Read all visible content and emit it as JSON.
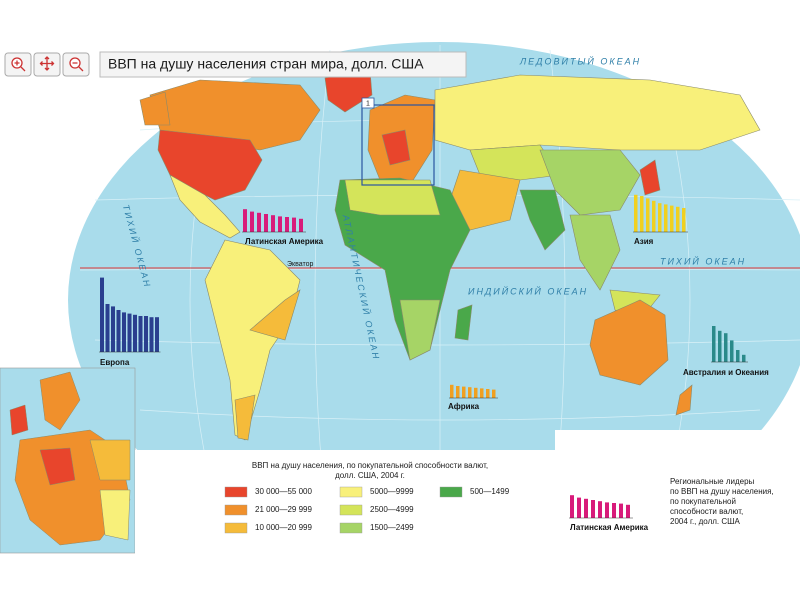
{
  "header": {
    "title": "ВВП на душу населения стран мира, долл. США"
  },
  "map": {
    "ocean_labels": [
      "ЛЕДОВИТЫЙ ОКЕАН",
      "АТЛАНТИЧЕСКИЙ ОКЕАН",
      "ИНДИЙСКИЙ ОКЕАН",
      "ТИХИЙ ОКЕАН",
      "ТИХИЙ ОКЕАН"
    ],
    "equator_label": "Экватор",
    "inset_number": "1"
  },
  "legend": {
    "title": [
      "ВВП на душу населения, по покупательной способности валют,",
      "долл. США, 2004 г."
    ],
    "items": [
      {
        "label": "30 000—55 000",
        "color": "#e8452c"
      },
      {
        "label": "21 000—29 999",
        "color": "#f0902c"
      },
      {
        "label": "10 000—20 999",
        "color": "#f5bb3a"
      },
      {
        "label": "5000—9999",
        "color": "#f8f07a"
      },
      {
        "label": "2500—4999",
        "color": "#d4e45a"
      },
      {
        "label": "1500—2499",
        "color": "#a6d466"
      },
      {
        "label": "500—1499",
        "color": "#4aa84a"
      }
    ]
  },
  "leaders_note": [
    "Региональные лидеры",
    "по ВВП на душу населения,",
    "по покупательной",
    "способности валют,",
    "2004 г., долл. США"
  ],
  "regional_charts": [
    {
      "label": "Латинская Америка",
      "color": "#d81b7a",
      "values": [
        19000,
        17000,
        16000,
        15000,
        14000,
        13000,
        12500,
        12000,
        11000
      ]
    },
    {
      "label": "Европа",
      "color": "#2a3f8f",
      "values": [
        62000,
        40000,
        38000,
        35000,
        33000,
        32000,
        31000,
        30000,
        30000,
        29000,
        29000
      ]
    },
    {
      "label": "Азия",
      "color": "#f0d020",
      "values": [
        31000,
        30000,
        28000,
        26000,
        24000,
        23000,
        22000,
        21000,
        20000
      ]
    },
    {
      "label": "Африка",
      "color": "#f0a020",
      "values": [
        11000,
        10000,
        9500,
        9000,
        8500,
        8000,
        7500,
        7000
      ]
    },
    {
      "label": "Австралия и Океания",
      "color": "#2a8a8a",
      "values": [
        30000,
        26000,
        24000,
        18000,
        10000,
        6000
      ]
    },
    {
      "label": "Латинская Америка",
      "color": "#d81b7a",
      "values": [
        19000,
        17000,
        16000,
        15000,
        14000,
        13000,
        12500,
        12000,
        11000
      ]
    }
  ]
}
